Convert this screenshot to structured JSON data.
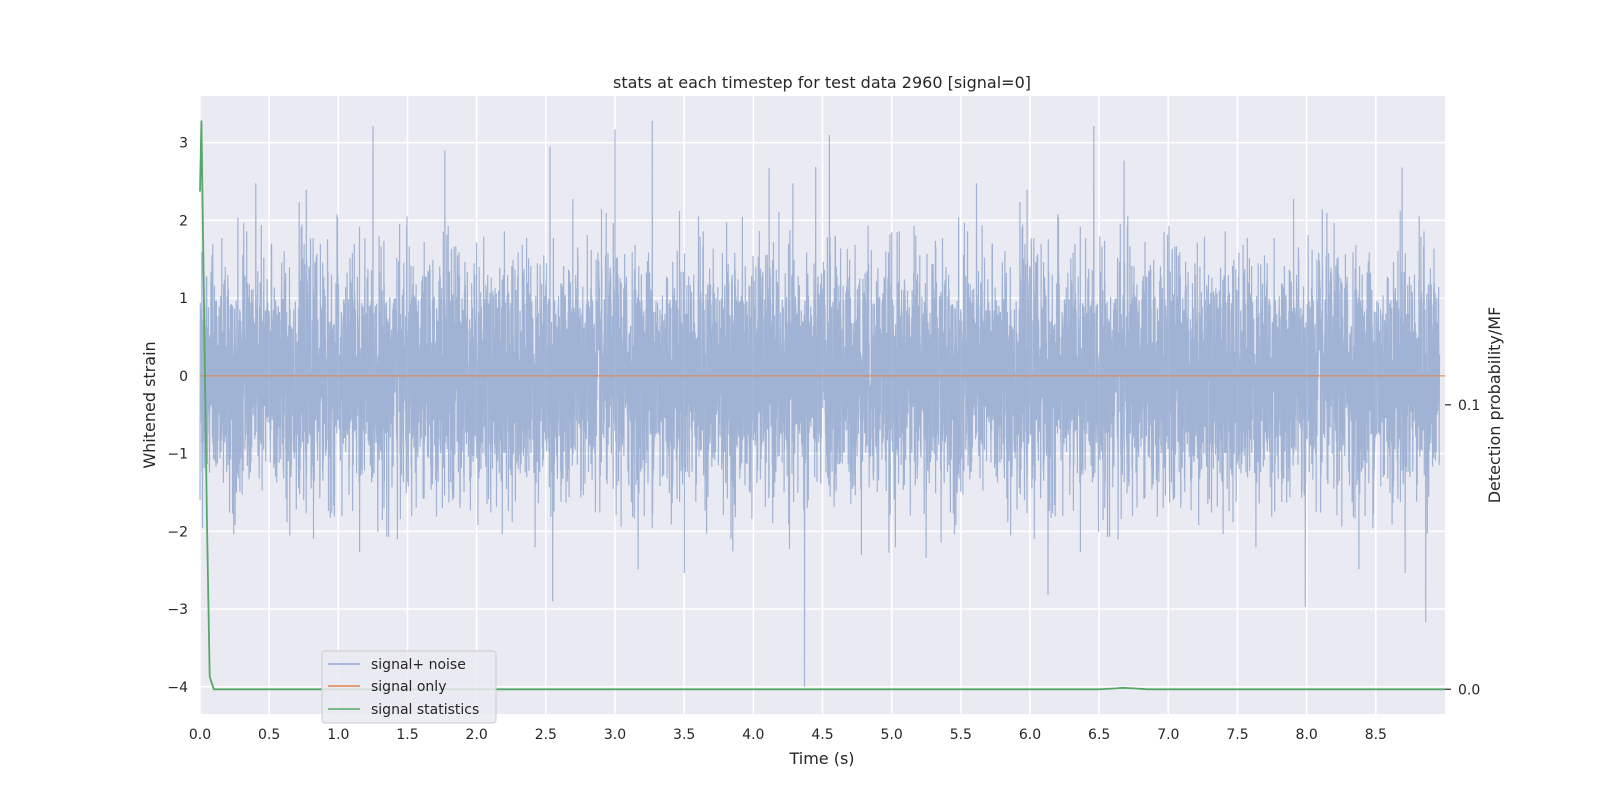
{
  "chart_data": {
    "type": "line",
    "title": "stats at each timestep for test data 2960 [signal=0]",
    "xlabel": "Time (s)",
    "ylabel": "Whitened strain",
    "y2label": "Detection probability/MF",
    "xlim": [
      0,
      9.0
    ],
    "ylim": [
      -4.35,
      3.6
    ],
    "y2lim": [
      -0.0087,
      0.2086
    ],
    "x_ticks": [
      0.0,
      0.5,
      1.0,
      1.5,
      2.0,
      2.5,
      3.0,
      3.5,
      4.0,
      4.5,
      5.0,
      5.5,
      6.0,
      6.5,
      7.0,
      7.5,
      8.0,
      8.5
    ],
    "x_tick_labels": [
      "0.0",
      "0.5",
      "1.0",
      "1.5",
      "2.0",
      "2.5",
      "3.0",
      "3.5",
      "4.0",
      "4.5",
      "5.0",
      "5.5",
      "6.0",
      "6.5",
      "7.0",
      "7.5",
      "8.0",
      "8.5"
    ],
    "y_ticks": [
      -4,
      -3,
      -2,
      -1,
      0,
      1,
      2,
      3
    ],
    "y_tick_labels": [
      "−4",
      "−3",
      "−2",
      "−1",
      "0",
      "1",
      "2",
      "3"
    ],
    "y2_ticks": [
      0.0,
      0.1
    ],
    "y2_tick_labels": [
      "0.0",
      "0.1"
    ],
    "grid": true,
    "legend_position": "lower-left",
    "series": [
      {
        "name": "signal+ noise",
        "axis": "left",
        "color": "#8fa5cc",
        "style": "dense-noise",
        "mean": 0,
        "std": 0.75,
        "min": -4.0,
        "max": 3.28,
        "peaks": [
          {
            "x": 3.27,
            "y": 3.28
          },
          {
            "x": 3.0,
            "y": 3.17
          },
          {
            "x": 4.55,
            "y": 3.1
          },
          {
            "x": 2.53,
            "y": 2.95
          },
          {
            "x": 1.77,
            "y": 2.9
          },
          {
            "x": 6.68,
            "y": 2.77
          },
          {
            "x": 8.69,
            "y": 2.68
          },
          {
            "x": 4.37,
            "y": -4.0
          },
          {
            "x": 8.86,
            "y": -3.17
          },
          {
            "x": 7.99,
            "y": -2.97
          },
          {
            "x": 2.55,
            "y": -2.9
          },
          {
            "x": 6.13,
            "y": -2.82
          }
        ]
      },
      {
        "name": "signal only",
        "axis": "left",
        "color": "#dd8452",
        "x": [
          0.0,
          9.0
        ],
        "y": [
          0.0,
          0.0
        ]
      },
      {
        "name": "signal statistics",
        "axis": "right",
        "color": "#55a868",
        "x": [
          0.0,
          0.01,
          0.03,
          0.05,
          0.07,
          0.1,
          0.2,
          6.5,
          6.62,
          6.67,
          6.75,
          6.85,
          9.0
        ],
        "y": [
          0.175,
          0.2,
          0.13,
          0.06,
          0.0045,
          0.0,
          0.0,
          0.0,
          0.0003,
          0.0005,
          0.0003,
          0.0,
          0.0
        ]
      }
    ]
  }
}
